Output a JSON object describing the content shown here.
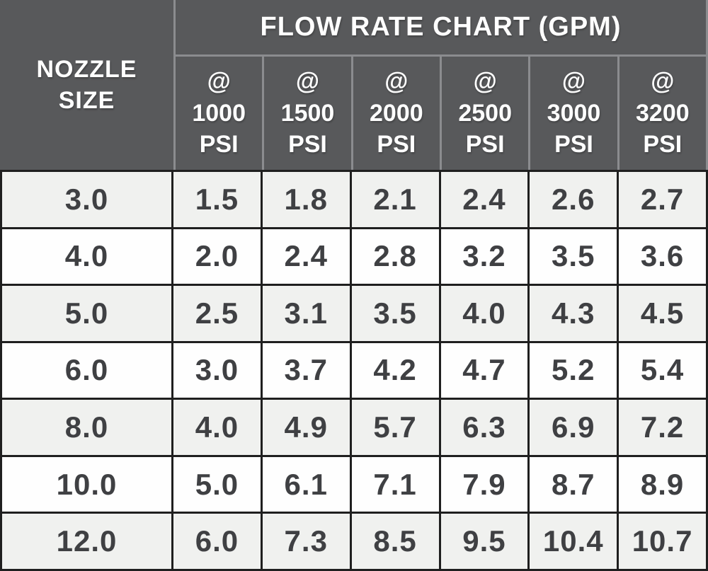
{
  "style": {
    "header_bg": "#58595b",
    "header_divider": "#8b8c8f",
    "header_text": "#ffffff",
    "grid_line": "#1f1f1f",
    "row_odd": "#f0f1ef",
    "row_even": "#fefefe",
    "cell_text": "#3f4043"
  },
  "chart_data": {
    "type": "table",
    "title": "FLOW RATE CHART (GPM)",
    "row_header": {
      "line1": "NOZZLE",
      "line2": "SIZE"
    },
    "pressure_columns": [
      {
        "symbol": "@",
        "pressure": "1000",
        "unit": "PSI"
      },
      {
        "symbol": "@",
        "pressure": "1500",
        "unit": "PSI"
      },
      {
        "symbol": "@",
        "pressure": "2000",
        "unit": "PSI"
      },
      {
        "symbol": "@",
        "pressure": "2500",
        "unit": "PSI"
      },
      {
        "symbol": "@",
        "pressure": "3000",
        "unit": "PSI"
      },
      {
        "symbol": "@",
        "pressure": "3200",
        "unit": "PSI"
      }
    ],
    "rows": [
      {
        "nozzle_size": "3.0",
        "flow_rates": [
          "1.5",
          "1.8",
          "2.1",
          "2.4",
          "2.6",
          "2.7"
        ]
      },
      {
        "nozzle_size": "4.0",
        "flow_rates": [
          "2.0",
          "2.4",
          "2.8",
          "3.2",
          "3.5",
          "3.6"
        ]
      },
      {
        "nozzle_size": "5.0",
        "flow_rates": [
          "2.5",
          "3.1",
          "3.5",
          "4.0",
          "4.3",
          "4.5"
        ]
      },
      {
        "nozzle_size": "6.0",
        "flow_rates": [
          "3.0",
          "3.7",
          "4.2",
          "4.7",
          "5.2",
          "5.4"
        ]
      },
      {
        "nozzle_size": "8.0",
        "flow_rates": [
          "4.0",
          "4.9",
          "5.7",
          "6.3",
          "6.9",
          "7.2"
        ]
      },
      {
        "nozzle_size": "10.0",
        "flow_rates": [
          "5.0",
          "6.1",
          "7.1",
          "7.9",
          "8.7",
          "8.9"
        ]
      },
      {
        "nozzle_size": "12.0",
        "flow_rates": [
          "6.0",
          "7.3",
          "8.5",
          "9.5",
          "10.4",
          "10.7"
        ]
      }
    ]
  }
}
